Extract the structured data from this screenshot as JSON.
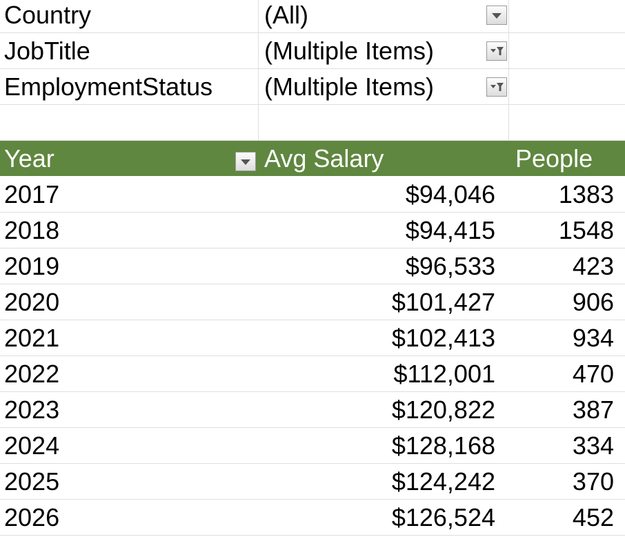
{
  "filters": [
    {
      "field": "Country",
      "value": "(All)"
    },
    {
      "field": "JobTitle",
      "value": "(Multiple Items)"
    },
    {
      "field": "EmploymentStatus",
      "value": "(Multiple Items)"
    }
  ],
  "table": {
    "header": [
      "Year",
      "Avg Salary",
      "People"
    ],
    "rows": [
      [
        "2017",
        "$94,046",
        "1383"
      ],
      [
        "2018",
        "$94,415",
        "1548"
      ],
      [
        "2019",
        "$96,533",
        "423"
      ],
      [
        "2020",
        "$101,427",
        "906"
      ],
      [
        "2021",
        "$102,413",
        "934"
      ],
      [
        "2022",
        "$112,001",
        "470"
      ],
      [
        "2023",
        "$120,822",
        "387"
      ],
      [
        "2024",
        "$128,168",
        "334"
      ],
      [
        "2025",
        "$124,242",
        "370"
      ],
      [
        "2026",
        "$126,524",
        "452"
      ]
    ]
  }
}
